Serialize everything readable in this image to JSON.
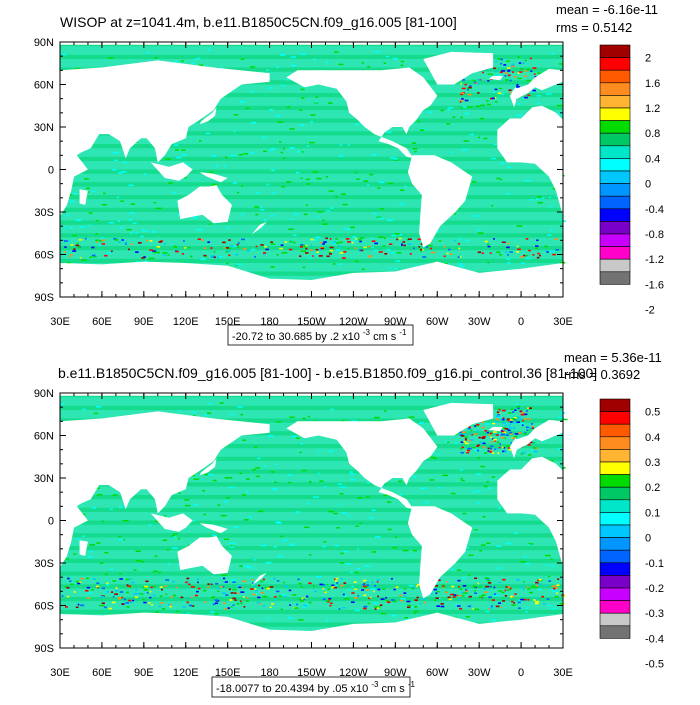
{
  "panels": [
    {
      "title": "WISOP at z=1041.4m, b.e11.B1850C5CN.f09_g16.005 [81-100]",
      "mean": "mean = -6.16e-11",
      "rms": "rms = 0.5142",
      "range_text": "-20.72 to 30.685 by .2 x10",
      "range_exp": "-3",
      "range_unit": " cm s",
      "range_unit_exp": "-1",
      "colorbar_labels": [
        "2",
        "1.6",
        "1.2",
        "0.8",
        "0.4",
        "0",
        "-0.4",
        "-0.8",
        "-1.2",
        "-1.6",
        "-2"
      ]
    },
    {
      "title": "b.e11.B1850C5CN.f09_g16.005 [81-100] - b.e15.B1850.f09_g16.pi_control.36 [81-100]",
      "mean": "mean = 5.36e-11",
      "rms": "rms = 0.3692",
      "range_text": "-18.0077 to 20.4394 by .05 x10",
      "range_exp": "-3",
      "range_unit": " cm s",
      "range_unit_exp": "-1",
      "colorbar_labels": [
        "0.5",
        "0.4",
        "0.3",
        "0.2",
        "0.1",
        "0",
        "-0.1",
        "-0.2",
        "-0.3",
        "-0.4",
        "-0.5"
      ]
    }
  ],
  "axes": {
    "lat_labels": [
      "90N",
      "60N",
      "30N",
      "0",
      "30S",
      "60S",
      "90S"
    ],
    "lon_labels": [
      "30E",
      "60E",
      "90E",
      "120E",
      "150E",
      "180",
      "150W",
      "120W",
      "90W",
      "60W",
      "30W",
      "0",
      "30E"
    ]
  },
  "colors": {
    "palette": [
      "#a00000",
      "#ff0000",
      "#ff5a00",
      "#ff8c1e",
      "#ffb432",
      "#ffff00",
      "#00dc00",
      "#00c864",
      "#00e6c8",
      "#00ffff",
      "#00c8ff",
      "#0096ff",
      "#0064ff",
      "#0000ff",
      "#7800c8",
      "#c800ff",
      "#ff00c8",
      "#c8c8c8",
      "#737373"
    ],
    "ocean": "#2ee6b4",
    "ocean_dark": "#14dc8c"
  }
}
